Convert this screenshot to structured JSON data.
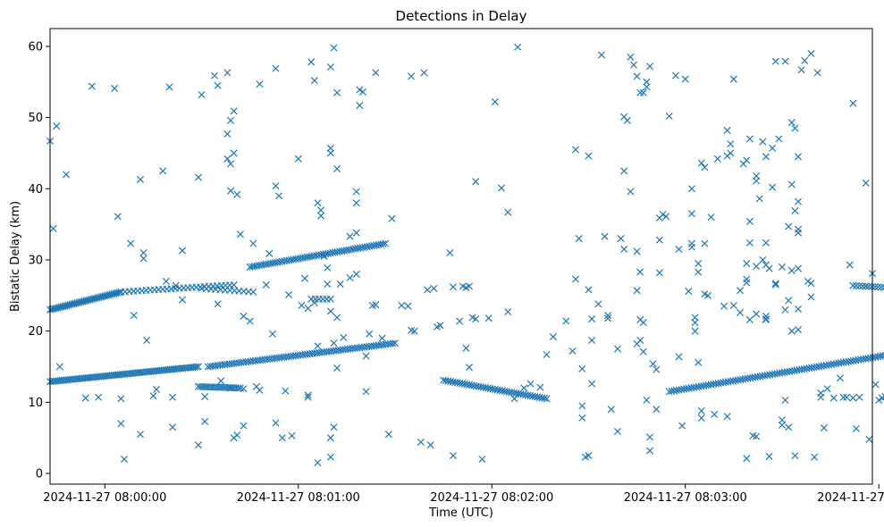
{
  "chart_data": {
    "type": "scatter",
    "title": "Detections in Delay",
    "xlabel": "Time (UTC)",
    "ylabel": "Bistatic Delay (km)",
    "marker": "x",
    "color": "#1f77b4",
    "xlim": [
      -17,
      238
    ],
    "ylim": [
      -1.5,
      62.5
    ],
    "x_unit": "seconds after 2024-11-27 08:00:00",
    "xticks": [
      {
        "value": 0,
        "label": "2024-11-27 08:00:00"
      },
      {
        "value": 60,
        "label": "2024-11-27 08:01:00"
      },
      {
        "value": 120,
        "label": "2024-11-27 08:02:00"
      },
      {
        "value": 180,
        "label": "2024-11-27 08:03:00"
      },
      {
        "value": 240,
        "label": "2024-11-27 08:04:00"
      }
    ],
    "yticks": [
      {
        "value": 0,
        "label": "0"
      },
      {
        "value": 10,
        "label": "10"
      },
      {
        "value": 20,
        "label": "20"
      },
      {
        "value": 30,
        "label": "30"
      },
      {
        "value": 40,
        "label": "40"
      },
      {
        "value": 50,
        "label": "50"
      },
      {
        "value": 60,
        "label": "60"
      }
    ],
    "tracks": [
      {
        "x_start": -17,
        "x_end": 29,
        "y_start": 12.9,
        "y_end": 15.0,
        "count": 75
      },
      {
        "x_start": 29,
        "x_end": 42,
        "y_start": 12.2,
        "y_end": 12.0,
        "count": 20
      },
      {
        "x_start": 32,
        "x_end": 90,
        "y_start": 15.0,
        "y_end": 18.3,
        "count": 80
      },
      {
        "x_start": 105,
        "x_end": 137,
        "y_start": 13.1,
        "y_end": 10.5,
        "count": 45
      },
      {
        "x_start": 175,
        "x_end": 258,
        "y_start": 11.5,
        "y_end": 17.8,
        "count": 110
      },
      {
        "x_start": 264,
        "x_end": 280,
        "y_start": 18.5,
        "y_end": 18.7,
        "count": 10
      },
      {
        "x_start": -17,
        "x_end": 5,
        "y_start": 23.0,
        "y_end": 25.5,
        "count": 40
      },
      {
        "x_start": 5,
        "x_end": 40,
        "y_start": 25.5,
        "y_end": 26.5,
        "count": 28
      },
      {
        "x_start": 30,
        "x_end": 46,
        "y_start": 26.0,
        "y_end": 25.5,
        "count": 12
      },
      {
        "x_start": 45,
        "x_end": 87,
        "y_start": 29.0,
        "y_end": 32.3,
        "count": 60
      },
      {
        "x_start": 64,
        "x_end": 70,
        "y_start": 24.5,
        "y_end": 24.5,
        "count": 6
      },
      {
        "x_start": 232,
        "x_end": 265,
        "y_start": 26.4,
        "y_end": 25.5,
        "count": 35
      },
      {
        "x_start": 258,
        "x_end": 278,
        "y_start": 23.0,
        "y_end": 25.0,
        "count": 30
      },
      {
        "x_start": 260,
        "x_end": 270,
        "y_start": 53.8,
        "y_end": 53.5,
        "count": 18
      }
    ],
    "points": [
      [
        -17,
        46.7
      ],
      [
        -15,
        48.8
      ],
      [
        -16,
        34.4
      ],
      [
        -12,
        42.0
      ],
      [
        -14,
        15.0
      ],
      [
        -6,
        10.6
      ],
      [
        -2,
        10.7
      ],
      [
        -4,
        54.4
      ],
      [
        3,
        54.1
      ],
      [
        4,
        36.1
      ],
      [
        5,
        7.0
      ],
      [
        5,
        10.5
      ],
      [
        6,
        2.0
      ],
      [
        8,
        32.3
      ],
      [
        9,
        22.2
      ],
      [
        11,
        41.3
      ],
      [
        12,
        31.0
      ],
      [
        12,
        30.2
      ],
      [
        11,
        5.5
      ],
      [
        13,
        18.7
      ],
      [
        15,
        10.9
      ],
      [
        16,
        11.8
      ],
      [
        18,
        42.5
      ],
      [
        19,
        27.0
      ],
      [
        20,
        54.3
      ],
      [
        21,
        6.5
      ],
      [
        21,
        10.7
      ],
      [
        22,
        26.4
      ],
      [
        24,
        24.4
      ],
      [
        24,
        31.3
      ],
      [
        29,
        4.0
      ],
      [
        29,
        41.6
      ],
      [
        30,
        53.2
      ],
      [
        31,
        7.3
      ],
      [
        31,
        10.8
      ],
      [
        34,
        55.9
      ],
      [
        35,
        54.5
      ],
      [
        35,
        23.8
      ],
      [
        36,
        13.0
      ],
      [
        38,
        56.3
      ],
      [
        38,
        44.2
      ],
      [
        39,
        43.5
      ],
      [
        38,
        47.7
      ],
      [
        40,
        45.0
      ],
      [
        40,
        50.9
      ],
      [
        39,
        49.6
      ],
      [
        39,
        39.7
      ],
      [
        41,
        39.2
      ],
      [
        39,
        12.0
      ],
      [
        41,
        5.4
      ],
      [
        40,
        5.0
      ],
      [
        42,
        33.6
      ],
      [
        43,
        22.1
      ],
      [
        43,
        11.9
      ],
      [
        43,
        6.7
      ],
      [
        45,
        21.4
      ],
      [
        46,
        32.3
      ],
      [
        47,
        12.2
      ],
      [
        48,
        11.7
      ],
      [
        48,
        54.7
      ],
      [
        50,
        26.5
      ],
      [
        51,
        30.9
      ],
      [
        53,
        7.1
      ],
      [
        52,
        19.6
      ],
      [
        53,
        56.9
      ],
      [
        53,
        40.4
      ],
      [
        54,
        39.0
      ],
      [
        55,
        5.0
      ],
      [
        56,
        11.6
      ],
      [
        57,
        25.1
      ],
      [
        58,
        5.3
      ],
      [
        60,
        44.2
      ],
      [
        61,
        23.6
      ],
      [
        62,
        27.4
      ],
      [
        63,
        23.2
      ],
      [
        64,
        57.8
      ],
      [
        65,
        55.2
      ],
      [
        63,
        11.0
      ],
      [
        63,
        10.7
      ],
      [
        65,
        24.0
      ],
      [
        66,
        38.0
      ],
      [
        67,
        37.0
      ],
      [
        67,
        36.2
      ],
      [
        68,
        30.5
      ],
      [
        69,
        28.9
      ],
      [
        69,
        26.6
      ],
      [
        70,
        45.0
      ],
      [
        70,
        45.7
      ],
      [
        70,
        22.8
      ],
      [
        71,
        18.3
      ],
      [
        72,
        53.5
      ],
      [
        72,
        42.8
      ],
      [
        71,
        59.8
      ],
      [
        70,
        57.1
      ],
      [
        70,
        5.0
      ],
      [
        70,
        2.3
      ],
      [
        71,
        6.5
      ],
      [
        72,
        14.8
      ],
      [
        66,
        1.5
      ],
      [
        66,
        17.9
      ],
      [
        72,
        21.9
      ],
      [
        73,
        26.6
      ],
      [
        74,
        19.1
      ],
      [
        76,
        33.3
      ],
      [
        76,
        27.5
      ],
      [
        78,
        28.0
      ],
      [
        78,
        39.6
      ],
      [
        78,
        38.0
      ],
      [
        78,
        33.8
      ],
      [
        79,
        53.9
      ],
      [
        79,
        51.7
      ],
      [
        80,
        53.6
      ],
      [
        81,
        11.5
      ],
      [
        81,
        16.5
      ],
      [
        82,
        19.6
      ],
      [
        84,
        23.7
      ],
      [
        83,
        23.6
      ],
      [
        84,
        56.3
      ],
      [
        86,
        19.0
      ],
      [
        88,
        5.5
      ],
      [
        89,
        35.8
      ],
      [
        92,
        23.6
      ],
      [
        94,
        23.5
      ],
      [
        95,
        55.8
      ],
      [
        95,
        20.1
      ],
      [
        96,
        20.0
      ],
      [
        98,
        4.4
      ],
      [
        99,
        56.3
      ],
      [
        100,
        25.8
      ],
      [
        101,
        4.0
      ],
      [
        102,
        26.0
      ],
      [
        103,
        20.6
      ],
      [
        104,
        20.8
      ],
      [
        107,
        31.0
      ],
      [
        108,
        2.5
      ],
      [
        108,
        26.2
      ],
      [
        110,
        21.4
      ],
      [
        112,
        26.1
      ],
      [
        111,
        26.3
      ],
      [
        113,
        26.3
      ],
      [
        112,
        17.6
      ],
      [
        113,
        14.9
      ],
      [
        114,
        21.9
      ],
      [
        115,
        21.7
      ],
      [
        115,
        41.0
      ],
      [
        117,
        2.0
      ],
      [
        119,
        21.8
      ],
      [
        121,
        52.2
      ],
      [
        123,
        40.1
      ],
      [
        125,
        36.7
      ],
      [
        125,
        22.7
      ],
      [
        127,
        10.5
      ],
      [
        128,
        59.9
      ],
      [
        130,
        12.0
      ],
      [
        132,
        12.6
      ],
      [
        135,
        12.1
      ],
      [
        137,
        16.7
      ],
      [
        139,
        19.2
      ],
      [
        143,
        21.4
      ],
      [
        145,
        17.2
      ],
      [
        146,
        27.3
      ],
      [
        146,
        45.5
      ],
      [
        147,
        33.0
      ],
      [
        148,
        9.5
      ],
      [
        148,
        7.8
      ],
      [
        148,
        14.7
      ],
      [
        149,
        2.3
      ],
      [
        150,
        25.8
      ],
      [
        150,
        44.6
      ],
      [
        150,
        2.5
      ],
      [
        151,
        18.7
      ],
      [
        151,
        21.7
      ],
      [
        151,
        12.6
      ],
      [
        153,
        23.8
      ],
      [
        154,
        58.8
      ],
      [
        155,
        33.3
      ],
      [
        156,
        21.8
      ],
      [
        156,
        22.2
      ],
      [
        157,
        9.0
      ],
      [
        159,
        5.9
      ],
      [
        159,
        17.5
      ],
      [
        160,
        33.0
      ],
      [
        161,
        31.5
      ],
      [
        161,
        42.5
      ],
      [
        161,
        50.1
      ],
      [
        162,
        49.6
      ],
      [
        163,
        39.6
      ],
      [
        163,
        58.5
      ],
      [
        164,
        57.4
      ],
      [
        165,
        55.8
      ],
      [
        166,
        53.5
      ],
      [
        167,
        53.5
      ],
      [
        168,
        54.3
      ],
      [
        169,
        57.2
      ],
      [
        168,
        55.0
      ],
      [
        165,
        31.2
      ],
      [
        166,
        28.3
      ],
      [
        165,
        25.7
      ],
      [
        165,
        18.2
      ],
      [
        166,
        18.7
      ],
      [
        166,
        21.6
      ],
      [
        167,
        21.2
      ],
      [
        167,
        17.1
      ],
      [
        168,
        10.3
      ],
      [
        169,
        5.1
      ],
      [
        169,
        3.2
      ],
      [
        170,
        15.4
      ],
      [
        171,
        9.0
      ],
      [
        171,
        14.6
      ],
      [
        172,
        35.9
      ],
      [
        172,
        32.8
      ],
      [
        172,
        28.2
      ],
      [
        173,
        36.4
      ],
      [
        174,
        36.1
      ],
      [
        175,
        50.2
      ],
      [
        177,
        55.9
      ],
      [
        178,
        31.5
      ],
      [
        178,
        16.4
      ],
      [
        179,
        6.7
      ],
      [
        180,
        55.4
      ],
      [
        181,
        25.6
      ],
      [
        182,
        31.8
      ],
      [
        182,
        32.3
      ],
      [
        182,
        36.5
      ],
      [
        182,
        40.0
      ],
      [
        183,
        21.9
      ],
      [
        183,
        21.2
      ],
      [
        183,
        20.0
      ],
      [
        184,
        28.3
      ],
      [
        184,
        29.5
      ],
      [
        185,
        43.6
      ],
      [
        186,
        32.3
      ],
      [
        186,
        25.2
      ],
      [
        187,
        25.0
      ],
      [
        186,
        43.0
      ],
      [
        184,
        15.6
      ],
      [
        185,
        8.8
      ],
      [
        185,
        7.8
      ],
      [
        188,
        36.0
      ],
      [
        189,
        8.3
      ],
      [
        190,
        44.2
      ],
      [
        192,
        23.5
      ],
      [
        193,
        48.2
      ],
      [
        194,
        46.3
      ],
      [
        193,
        44.6
      ],
      [
        194,
        45.0
      ],
      [
        193,
        8.0
      ],
      [
        195,
        55.4
      ],
      [
        195,
        23.6
      ],
      [
        197,
        22.6
      ],
      [
        197,
        25.7
      ],
      [
        198,
        43.5
      ],
      [
        199,
        44.0
      ],
      [
        199,
        29.5
      ],
      [
        199,
        26.8
      ],
      [
        199,
        2.1
      ],
      [
        200,
        47.0
      ],
      [
        200,
        35.4
      ],
      [
        200,
        32.4
      ],
      [
        199,
        27.3
      ],
      [
        200,
        21.6
      ],
      [
        201,
        5.3
      ],
      [
        202,
        5.2
      ],
      [
        202,
        29.1
      ],
      [
        202,
        22.4
      ],
      [
        202,
        41.8
      ],
      [
        202,
        41.1
      ],
      [
        203,
        38.6
      ],
      [
        204,
        46.6
      ],
      [
        204,
        30.0
      ],
      [
        205,
        32.4
      ],
      [
        205,
        29.3
      ],
      [
        205,
        21.6
      ],
      [
        205,
        21.7
      ],
      [
        205,
        22.1
      ],
      [
        205,
        44.5
      ],
      [
        206,
        2.4
      ],
      [
        206,
        28.8
      ],
      [
        207,
        40.2
      ],
      [
        207,
        45.7
      ],
      [
        208,
        26.7
      ],
      [
        208,
        26.5
      ],
      [
        208,
        57.9
      ],
      [
        209,
        47.0
      ],
      [
        210,
        29.0
      ],
      [
        210,
        7.5
      ],
      [
        210,
        6.8
      ],
      [
        211,
        57.9
      ],
      [
        211,
        23.0
      ],
      [
        211,
        10.3
      ],
      [
        212,
        24.3
      ],
      [
        212,
        6.5
      ],
      [
        213,
        49.3
      ],
      [
        213,
        40.6
      ],
      [
        212,
        34.7
      ],
      [
        213,
        28.5
      ],
      [
        213,
        20.0
      ],
      [
        214,
        48.5
      ],
      [
        214,
        36.9
      ],
      [
        214,
        2.5
      ],
      [
        215,
        44.5
      ],
      [
        215,
        38.2
      ],
      [
        215,
        34.3
      ],
      [
        215,
        33.8
      ],
      [
        215,
        28.8
      ],
      [
        215,
        20.2
      ],
      [
        215,
        23.1
      ],
      [
        216,
        56.7
      ],
      [
        217,
        58.0
      ],
      [
        218,
        27.0
      ],
      [
        219,
        59.0
      ],
      [
        219,
        26.7
      ],
      [
        219,
        24.8
      ],
      [
        220,
        2.3
      ],
      [
        221,
        56.3
      ],
      [
        222,
        10.7
      ],
      [
        222,
        11.3
      ],
      [
        223,
        6.4
      ],
      [
        224,
        11.9
      ],
      [
        226,
        10.6
      ],
      [
        228,
        13.4
      ],
      [
        229,
        10.7
      ],
      [
        230,
        10.7
      ],
      [
        231,
        29.3
      ],
      [
        232,
        52.0
      ],
      [
        232,
        10.6
      ],
      [
        233,
        6.3
      ],
      [
        234,
        10.7
      ],
      [
        236,
        26.3
      ],
      [
        236,
        40.8
      ],
      [
        237,
        4.8
      ],
      [
        238,
        28.1
      ],
      [
        239,
        12.5
      ],
      [
        240,
        10.3
      ],
      [
        241,
        10.6
      ],
      [
        242,
        10.8
      ],
      [
        243,
        8.3
      ],
      [
        243,
        1.7
      ],
      [
        244,
        25.0
      ],
      [
        245,
        18.1
      ],
      [
        246,
        25.1
      ],
      [
        246,
        53.1
      ],
      [
        247,
        58.5
      ],
      [
        248,
        58.6
      ]
    ]
  }
}
